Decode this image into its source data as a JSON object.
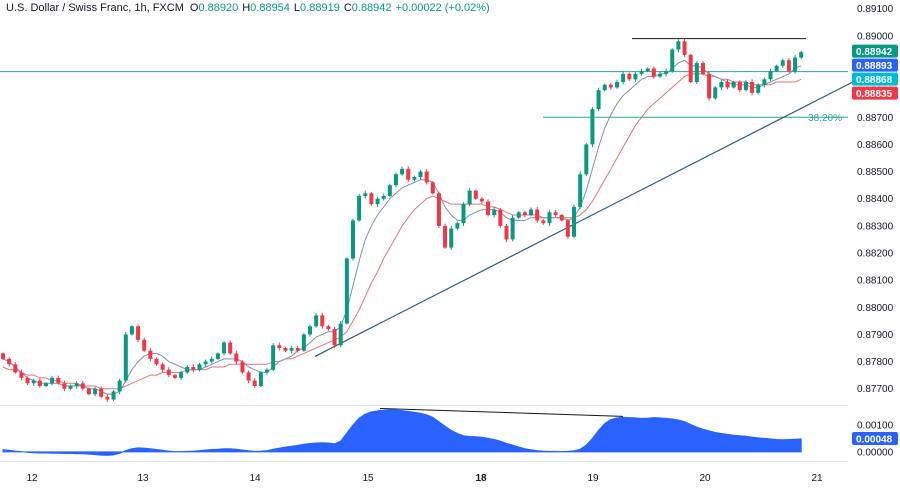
{
  "legend": {
    "symbol": "U.S. Dollar / Swiss Franc, 1h, FXCM",
    "o_label": "O",
    "o_value": "0.88920",
    "h_label": "H",
    "h_value": "0.88954",
    "l_label": "L",
    "l_value": "0.88919",
    "c_label": "C",
    "c_value": "0.88942",
    "change": "+0.00022 (+0.02%)"
  },
  "colors": {
    "up": "#089981",
    "down": "#f23645",
    "sma_fast": "#7f8fb0",
    "sma_slow": "#e57373",
    "trendline": "#2d5a83",
    "horizontal": "#26a69a",
    "osc_fill": "#2962ff",
    "tag_green": "#089981",
    "tag_blue": "#2962ff",
    "tag_cyan": "#00bcd4",
    "tag_red": "#f23645"
  },
  "price_tags": [
    {
      "text": "0.88942",
      "price": 0.88942,
      "color": "tag_green"
    },
    {
      "text": "0.88893",
      "price": 0.88893,
      "color": "tag_blue"
    },
    {
      "text": "0.88868",
      "price": 0.88868,
      "color": "tag_cyan"
    },
    {
      "text": "0.88835",
      "price": 0.88835,
      "color": "tag_red"
    }
  ],
  "fib": {
    "label": "38.20%",
    "price": 0.887
  },
  "osc_tag": {
    "text": "0.00048",
    "value": 0.00048
  },
  "chart_data": {
    "type": "candlestick",
    "symbol": "USDCHF",
    "timeframe": "1h",
    "x_ticks": [
      "12",
      "13",
      "14",
      "15",
      "18",
      "19",
      "20",
      "21"
    ],
    "y_ticks": [
      "0.89100",
      "0.89000",
      "0.88900",
      "0.88800",
      "0.88700",
      "0.88600",
      "0.88500",
      "0.88400",
      "0.88300",
      "0.88200",
      "0.88100",
      "0.88000",
      "0.87900",
      "0.87800",
      "0.87700"
    ],
    "ylim": [
      0.8764,
      0.8911
    ],
    "osc_ticks": [
      "0.00100",
      "0.00000"
    ],
    "osc_ylim": [
      -0.0003,
      0.0017
    ],
    "grid": false,
    "close_series": [
      0.8781,
      0.8779,
      0.8776,
      0.8774,
      0.8772,
      0.8773,
      0.8771,
      0.8772,
      0.8774,
      0.8772,
      0.877,
      0.8771,
      0.8772,
      0.877,
      0.8768,
      0.877,
      0.8767,
      0.8766,
      0.8769,
      0.8773,
      0.879,
      0.8793,
      0.8788,
      0.8784,
      0.8781,
      0.8779,
      0.8777,
      0.8775,
      0.8774,
      0.8776,
      0.8778,
      0.8777,
      0.8779,
      0.878,
      0.8781,
      0.8783,
      0.8787,
      0.8783,
      0.878,
      0.8776,
      0.8773,
      0.8771,
      0.8776,
      0.8777,
      0.8786,
      0.8785,
      0.8784,
      0.8785,
      0.8784,
      0.879,
      0.8793,
      0.8797,
      0.8793,
      0.8792,
      0.8786,
      0.8794,
      0.8818,
      0.8832,
      0.8841,
      0.8842,
      0.8838,
      0.884,
      0.8841,
      0.8845,
      0.8849,
      0.8851,
      0.8847,
      0.8848,
      0.885,
      0.8846,
      0.8842,
      0.883,
      0.8822,
      0.8829,
      0.8831,
      0.8838,
      0.8843,
      0.884,
      0.8839,
      0.8834,
      0.8836,
      0.883,
      0.8825,
      0.8833,
      0.8835,
      0.8834,
      0.8836,
      0.8832,
      0.8831,
      0.8835,
      0.8834,
      0.8832,
      0.8826,
      0.8837,
      0.8849,
      0.886,
      0.8873,
      0.888,
      0.8882,
      0.8881,
      0.8883,
      0.8886,
      0.8884,
      0.8886,
      0.8887,
      0.8888,
      0.8885,
      0.8886,
      0.8887,
      0.8895,
      0.8898,
      0.8893,
      0.8883,
      0.889,
      0.8886,
      0.8877,
      0.8881,
      0.8883,
      0.8881,
      0.8883,
      0.888,
      0.8883,
      0.8879,
      0.8882,
      0.8884,
      0.8887,
      0.8889,
      0.8891,
      0.8887,
      0.8892,
      0.8894
    ],
    "sma_fast": [
      0.8781,
      0.878,
      0.8778,
      0.8776,
      0.8774,
      0.8773,
      0.8772,
      0.8772,
      0.8772,
      0.8772,
      0.8771,
      0.8771,
      0.8771,
      0.8771,
      0.877,
      0.877,
      0.8769,
      0.8768,
      0.8768,
      0.8769,
      0.8773,
      0.8777,
      0.878,
      0.8782,
      0.8783,
      0.8783,
      0.8782,
      0.878,
      0.8779,
      0.8778,
      0.8777,
      0.8777,
      0.8777,
      0.8778,
      0.8779,
      0.878,
      0.8781,
      0.8781,
      0.8781,
      0.878,
      0.8778,
      0.8777,
      0.8776,
      0.8776,
      0.8778,
      0.878,
      0.8781,
      0.8782,
      0.8784,
      0.8785,
      0.8787,
      0.8789,
      0.879,
      0.8791,
      0.8791,
      0.8793,
      0.8799,
      0.8808,
      0.8817,
      0.8825,
      0.883,
      0.8834,
      0.8837,
      0.884,
      0.8842,
      0.8844,
      0.8845,
      0.8846,
      0.8847,
      0.8847,
      0.8846,
      0.8842,
      0.8837,
      0.8834,
      0.8832,
      0.8832,
      0.8834,
      0.8835,
      0.8836,
      0.8836,
      0.8836,
      0.8835,
      0.8833,
      0.8832,
      0.8832,
      0.8832,
      0.8833,
      0.8833,
      0.8833,
      0.8833,
      0.8833,
      0.8833,
      0.8832,
      0.8833,
      0.8837,
      0.8843,
      0.8851,
      0.8859,
      0.8866,
      0.8871,
      0.8875,
      0.8878,
      0.888,
      0.8882,
      0.8884,
      0.8885,
      0.8885,
      0.8886,
      0.8886,
      0.8888,
      0.889,
      0.8891,
      0.8889,
      0.8889,
      0.8888,
      0.8886,
      0.8885,
      0.8884,
      0.8883,
      0.8882,
      0.8882,
      0.8882,
      0.8881,
      0.8881,
      0.8882,
      0.8883,
      0.8884,
      0.8885,
      0.8886,
      0.8888,
      0.8889
    ],
    "sma_slow": [
      0.8778,
      0.8777,
      0.8777,
      0.8776,
      0.8775,
      0.8775,
      0.8774,
      0.8774,
      0.8773,
      0.8773,
      0.8772,
      0.8772,
      0.8772,
      0.8771,
      0.8771,
      0.8771,
      0.877,
      0.877,
      0.877,
      0.877,
      0.8771,
      0.8772,
      0.8773,
      0.8774,
      0.8775,
      0.8775,
      0.8776,
      0.8776,
      0.8776,
      0.8776,
      0.8777,
      0.8777,
      0.8777,
      0.8777,
      0.8778,
      0.8778,
      0.8778,
      0.8779,
      0.8779,
      0.8779,
      0.8779,
      0.8779,
      0.8779,
      0.8779,
      0.878,
      0.878,
      0.8781,
      0.8781,
      0.8782,
      0.8783,
      0.8784,
      0.8785,
      0.8786,
      0.8787,
      0.8788,
      0.8789,
      0.8791,
      0.8795,
      0.8799,
      0.8804,
      0.8809,
      0.8813,
      0.8818,
      0.8822,
      0.8826,
      0.883,
      0.8833,
      0.8836,
      0.8838,
      0.884,
      0.8841,
      0.884,
      0.8839,
      0.8838,
      0.8838,
      0.8838,
      0.8838,
      0.8838,
      0.8838,
      0.8837,
      0.8837,
      0.8836,
      0.8835,
      0.8834,
      0.8834,
      0.8834,
      0.8834,
      0.8834,
      0.8833,
      0.8833,
      0.8833,
      0.8833,
      0.8833,
      0.8833,
      0.8834,
      0.8836,
      0.8839,
      0.8843,
      0.8847,
      0.8851,
      0.8855,
      0.8859,
      0.8863,
      0.8867,
      0.887,
      0.8873,
      0.8875,
      0.8877,
      0.8879,
      0.8881,
      0.8883,
      0.8885,
      0.8886,
      0.8886,
      0.8886,
      0.8885,
      0.8885,
      0.8884,
      0.8884,
      0.8883,
      0.8883,
      0.8883,
      0.8882,
      0.8882,
      0.8882,
      0.8882,
      0.8883,
      0.8883,
      0.8883,
      0.8883,
      0.8884
    ],
    "oscillator": [
      8e-05,
      6e-05,
      3e-05,
      1e-05,
      -2e-05,
      -3e-05,
      -4e-05,
      -4e-05,
      -5e-05,
      -5e-05,
      -6e-05,
      -6e-05,
      -7e-05,
      -7e-05,
      -8e-05,
      -0.0001,
      -0.00012,
      -0.00013,
      -0.00011,
      -5e-05,
      5e-05,
      0.00012,
      0.00015,
      0.00014,
      0.00012,
      9e-05,
      6e-05,
      3e-05,
      1e-05,
      1e-05,
      2e-05,
      3e-05,
      5e-05,
      7e-05,
      9e-05,
      0.0001,
      0.00012,
      0.00012,
      0.0001,
      7e-05,
      4e-05,
      2e-05,
      3e-05,
      5e-05,
      0.0001,
      0.00014,
      0.00018,
      0.00021,
      0.00024,
      0.00028,
      0.00031,
      0.00033,
      0.00034,
      0.00033,
      0.0003,
      0.0004,
      0.0007,
      0.001,
      0.00125,
      0.0014,
      0.00148,
      0.00152,
      0.00155,
      0.00156,
      0.00155,
      0.00153,
      0.0015,
      0.00147,
      0.00143,
      0.00137,
      0.00128,
      0.00112,
      0.00095,
      0.0008,
      0.00068,
      0.0006,
      0.00057,
      0.00056,
      0.00054,
      0.0005,
      0.00046,
      0.0004,
      0.00032,
      0.00025,
      0.00018,
      0.00012,
      8e-05,
      5e-05,
      3e-05,
      2e-05,
      2e-05,
      1e-05,
      2e-05,
      4e-05,
      0.0001,
      0.00025,
      0.0005,
      0.0008,
      0.00105,
      0.0012,
      0.00126,
      0.00128,
      0.00127,
      0.00126,
      0.00124,
      0.00125,
      0.00127,
      0.00126,
      0.00124,
      0.00122,
      0.00118,
      0.00112,
      0.00102,
      0.00092,
      0.00084,
      0.00078,
      0.00072,
      0.00068,
      0.00065,
      0.00062,
      0.0006,
      0.00058,
      0.00055,
      0.00052,
      0.0005,
      0.00048,
      0.00046,
      0.00045,
      0.00046,
      0.00047,
      0.00048
    ]
  }
}
